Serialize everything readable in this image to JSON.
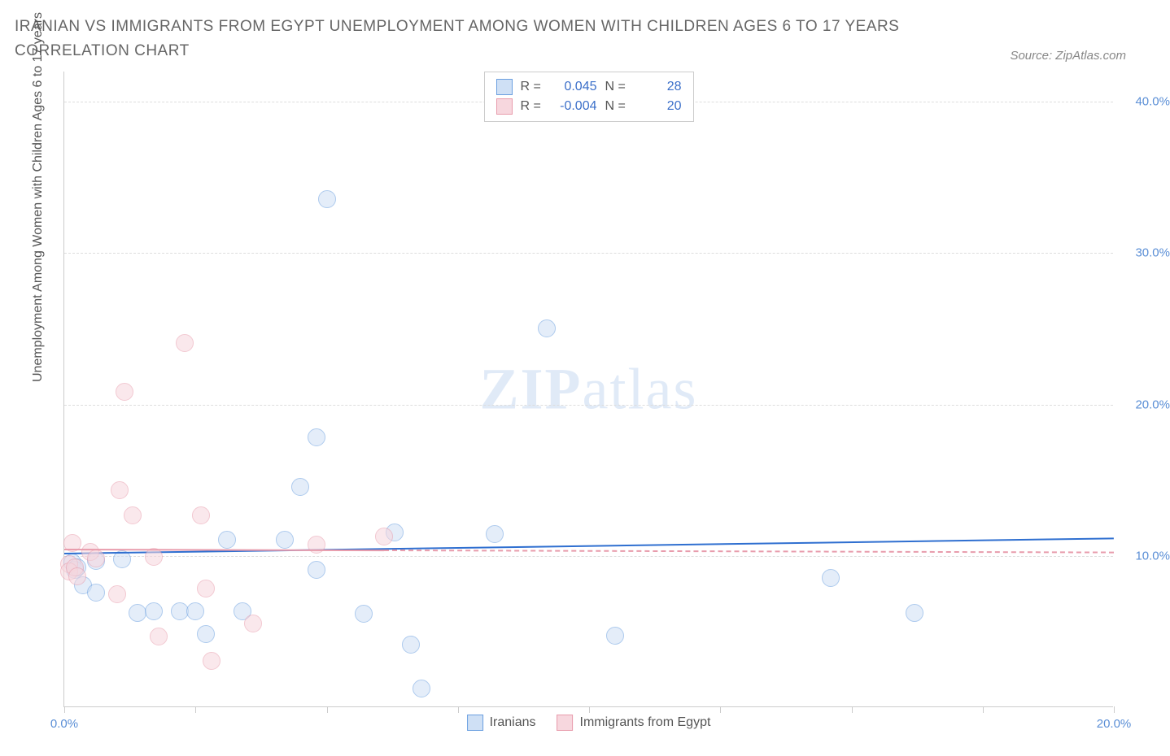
{
  "title": "IRANIAN VS IMMIGRANTS FROM EGYPT UNEMPLOYMENT AMONG WOMEN WITH CHILDREN AGES 6 TO 17 YEARS CORRELATION CHART",
  "source": "Source: ZipAtlas.com",
  "ylabel": "Unemployment Among Women with Children Ages 6 to 17 years",
  "watermark_bold": "ZIP",
  "watermark_light": "atlas",
  "chart": {
    "type": "scatter",
    "xlim": [
      0,
      20
    ],
    "ylim": [
      0,
      42
    ],
    "xticks": [
      0,
      2.5,
      5,
      7.5,
      10,
      12.5,
      15,
      17.5,
      20
    ],
    "xtick_labels": {
      "0": "0.0%",
      "20": "20.0%"
    },
    "yticks": [
      10,
      20,
      30,
      40
    ],
    "ytick_labels": [
      "10.0%",
      "20.0%",
      "30.0%",
      "40.0%"
    ],
    "grid_color": "#dddddd",
    "axis_color": "#cccccc",
    "background_color": "#ffffff",
    "tick_label_color": "#5b8fd6",
    "marker_radius": 11,
    "marker_stroke_width": 1.2,
    "series": [
      {
        "key": "iranians",
        "label": "Iranians",
        "fill": "#cfe0f5",
        "stroke": "#6b9fe0",
        "fill_opacity": 0.55,
        "R": "0.045",
        "N": "28",
        "trend": {
          "x1": 0,
          "y1": 10.2,
          "x2": 20,
          "y2": 11.2,
          "color": "#2f6fd0",
          "width": 2,
          "dash_after_x": null
        },
        "points": [
          [
            0.15,
            9.5
          ],
          [
            0.2,
            9.0
          ],
          [
            0.25,
            9.2
          ],
          [
            0.35,
            8.0
          ],
          [
            0.6,
            9.6
          ],
          [
            0.6,
            7.5
          ],
          [
            1.1,
            9.7
          ],
          [
            1.4,
            6.2
          ],
          [
            1.7,
            6.3
          ],
          [
            2.2,
            6.3
          ],
          [
            2.5,
            6.3
          ],
          [
            2.7,
            4.8
          ],
          [
            3.1,
            11.0
          ],
          [
            3.4,
            6.3
          ],
          [
            4.2,
            11.0
          ],
          [
            4.5,
            14.5
          ],
          [
            4.8,
            9.0
          ],
          [
            4.8,
            17.8
          ],
          [
            5.0,
            33.5
          ],
          [
            5.7,
            6.1
          ],
          [
            6.3,
            11.5
          ],
          [
            6.8,
            1.2
          ],
          [
            6.6,
            4.1
          ],
          [
            8.2,
            11.4
          ],
          [
            9.2,
            25.0
          ],
          [
            10.5,
            4.7
          ],
          [
            14.6,
            8.5
          ],
          [
            16.2,
            6.2
          ]
        ]
      },
      {
        "key": "egypt",
        "label": "Immigrants from Egypt",
        "fill": "#f7d7de",
        "stroke": "#e89cac",
        "fill_opacity": 0.55,
        "R": "-0.004",
        "N": "20",
        "trend": {
          "x1": 0,
          "y1": 10.5,
          "x2": 20,
          "y2": 10.3,
          "color": "#e89cac",
          "width": 2,
          "dash_after_x": 6.1
        },
        "points": [
          [
            0.1,
            9.4
          ],
          [
            0.1,
            8.9
          ],
          [
            0.15,
            10.8
          ],
          [
            0.2,
            9.2
          ],
          [
            0.25,
            8.6
          ],
          [
            0.5,
            10.2
          ],
          [
            0.6,
            9.8
          ],
          [
            1.0,
            7.4
          ],
          [
            1.05,
            14.3
          ],
          [
            1.15,
            20.8
          ],
          [
            1.3,
            12.6
          ],
          [
            1.7,
            9.9
          ],
          [
            1.8,
            4.6
          ],
          [
            2.3,
            24.0
          ],
          [
            2.6,
            12.6
          ],
          [
            2.7,
            7.8
          ],
          [
            2.8,
            3.0
          ],
          [
            3.6,
            5.5
          ],
          [
            4.8,
            10.7
          ],
          [
            6.1,
            11.2
          ]
        ]
      }
    ]
  },
  "legend_bottom": [
    {
      "series": "iranians"
    },
    {
      "series": "egypt"
    }
  ]
}
